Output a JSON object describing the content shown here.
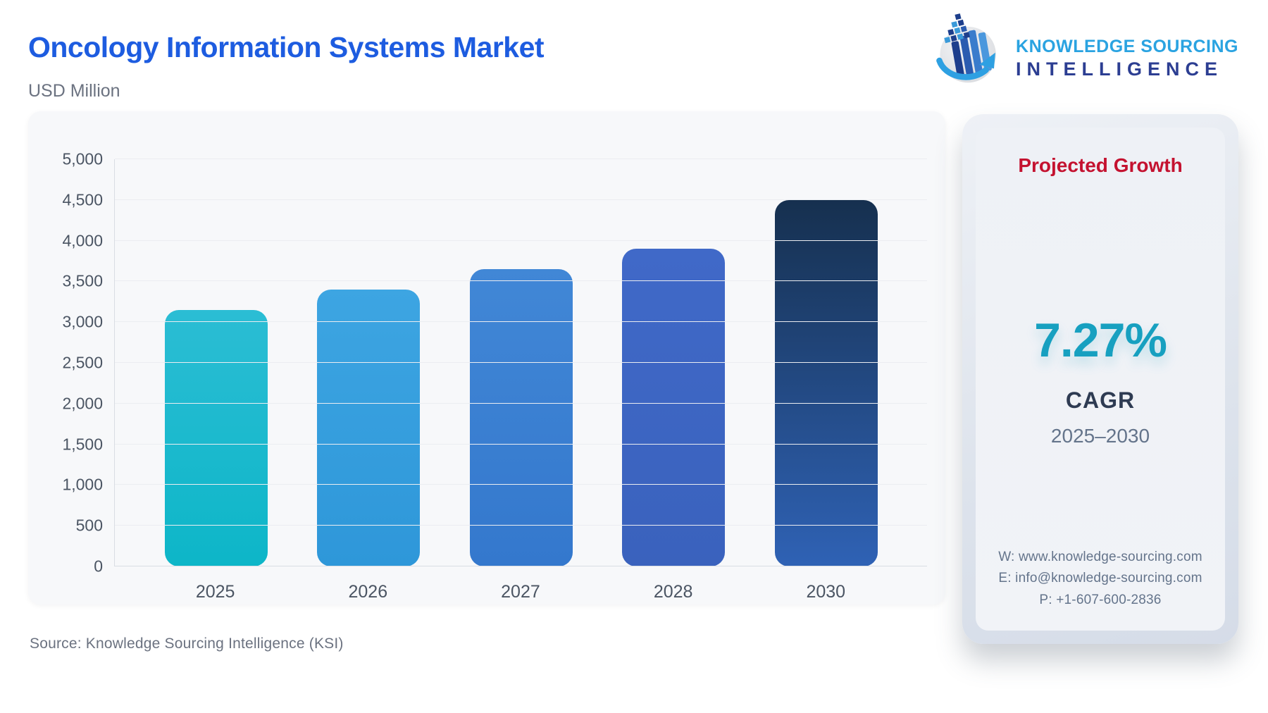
{
  "header": {
    "title": "Oncology Information Systems Market",
    "subtitle": "USD Million",
    "title_color": "#1d5ce0",
    "logo": {
      "line1": "KNOWLEDGE SOURCING",
      "line2": "INTELLIGENCE"
    }
  },
  "chart_data": {
    "type": "bar",
    "title": "Oncology Information Systems Market",
    "xlabel": "",
    "ylabel": "USD Million",
    "categories": [
      "2025",
      "2026",
      "2027",
      "2028",
      "2030"
    ],
    "values": [
      3150,
      3400,
      3650,
      3900,
      4500
    ],
    "ylim": [
      0,
      5000
    ],
    "ytick_step": 500,
    "grid": true,
    "legend": "none",
    "bar_colors": [
      {
        "top": "#2bbdd4",
        "bottom": "#0db6c8"
      },
      {
        "top": "#3da5e2",
        "bottom": "#2e97d9"
      },
      {
        "top": "#4187d6",
        "bottom": "#3478cd"
      },
      {
        "top": "#4069c8",
        "bottom": "#3a62bd"
      },
      {
        "top": "#16304f",
        "bottom": "#2f62b5"
      }
    ]
  },
  "growth_panel": {
    "title": "Projected Growth",
    "title_color": "#c41230",
    "cagr_value": "7.27%",
    "cagr_value_color": "#17a0c0",
    "cagr_label": "CAGR",
    "period": "2025–2030",
    "contact": {
      "website": "W: www.knowledge-sourcing.com",
      "email": "E: info@knowledge-sourcing.com",
      "phone": "P: +1-607-600-2836"
    }
  },
  "footer": {
    "source": "Source: Knowledge Sourcing Intelligence (KSI)"
  }
}
